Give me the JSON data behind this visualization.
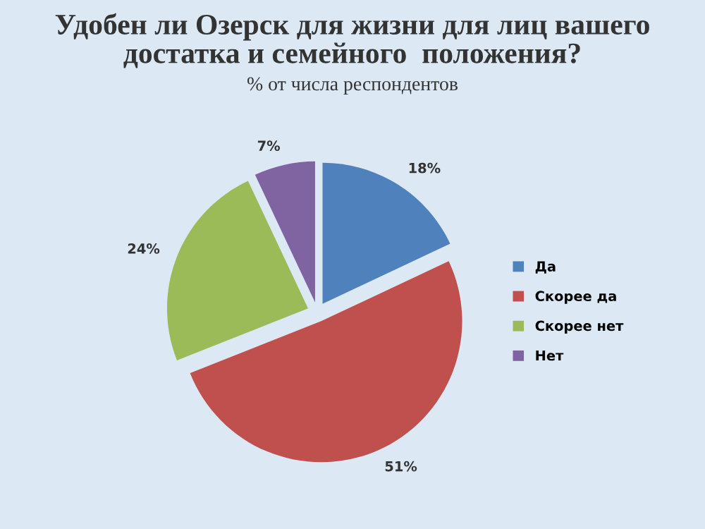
{
  "chart_data": {
    "type": "pie",
    "title": "Удобен ли Озерск для жизни для лиц вашего\nдостатка и семейного  положения?",
    "subtitle": "% от числа респондентов",
    "categories": [
      "Да",
      "Скорее да",
      "Скорее нет",
      "Нет"
    ],
    "values": [
      18,
      51,
      24,
      7
    ],
    "colors": [
      "#4f81bd",
      "#c0504d",
      "#9bbb59",
      "#8064a2"
    ],
    "value_labels": [
      "18%",
      "51%",
      "24%",
      "7%"
    ],
    "legend": "right"
  }
}
